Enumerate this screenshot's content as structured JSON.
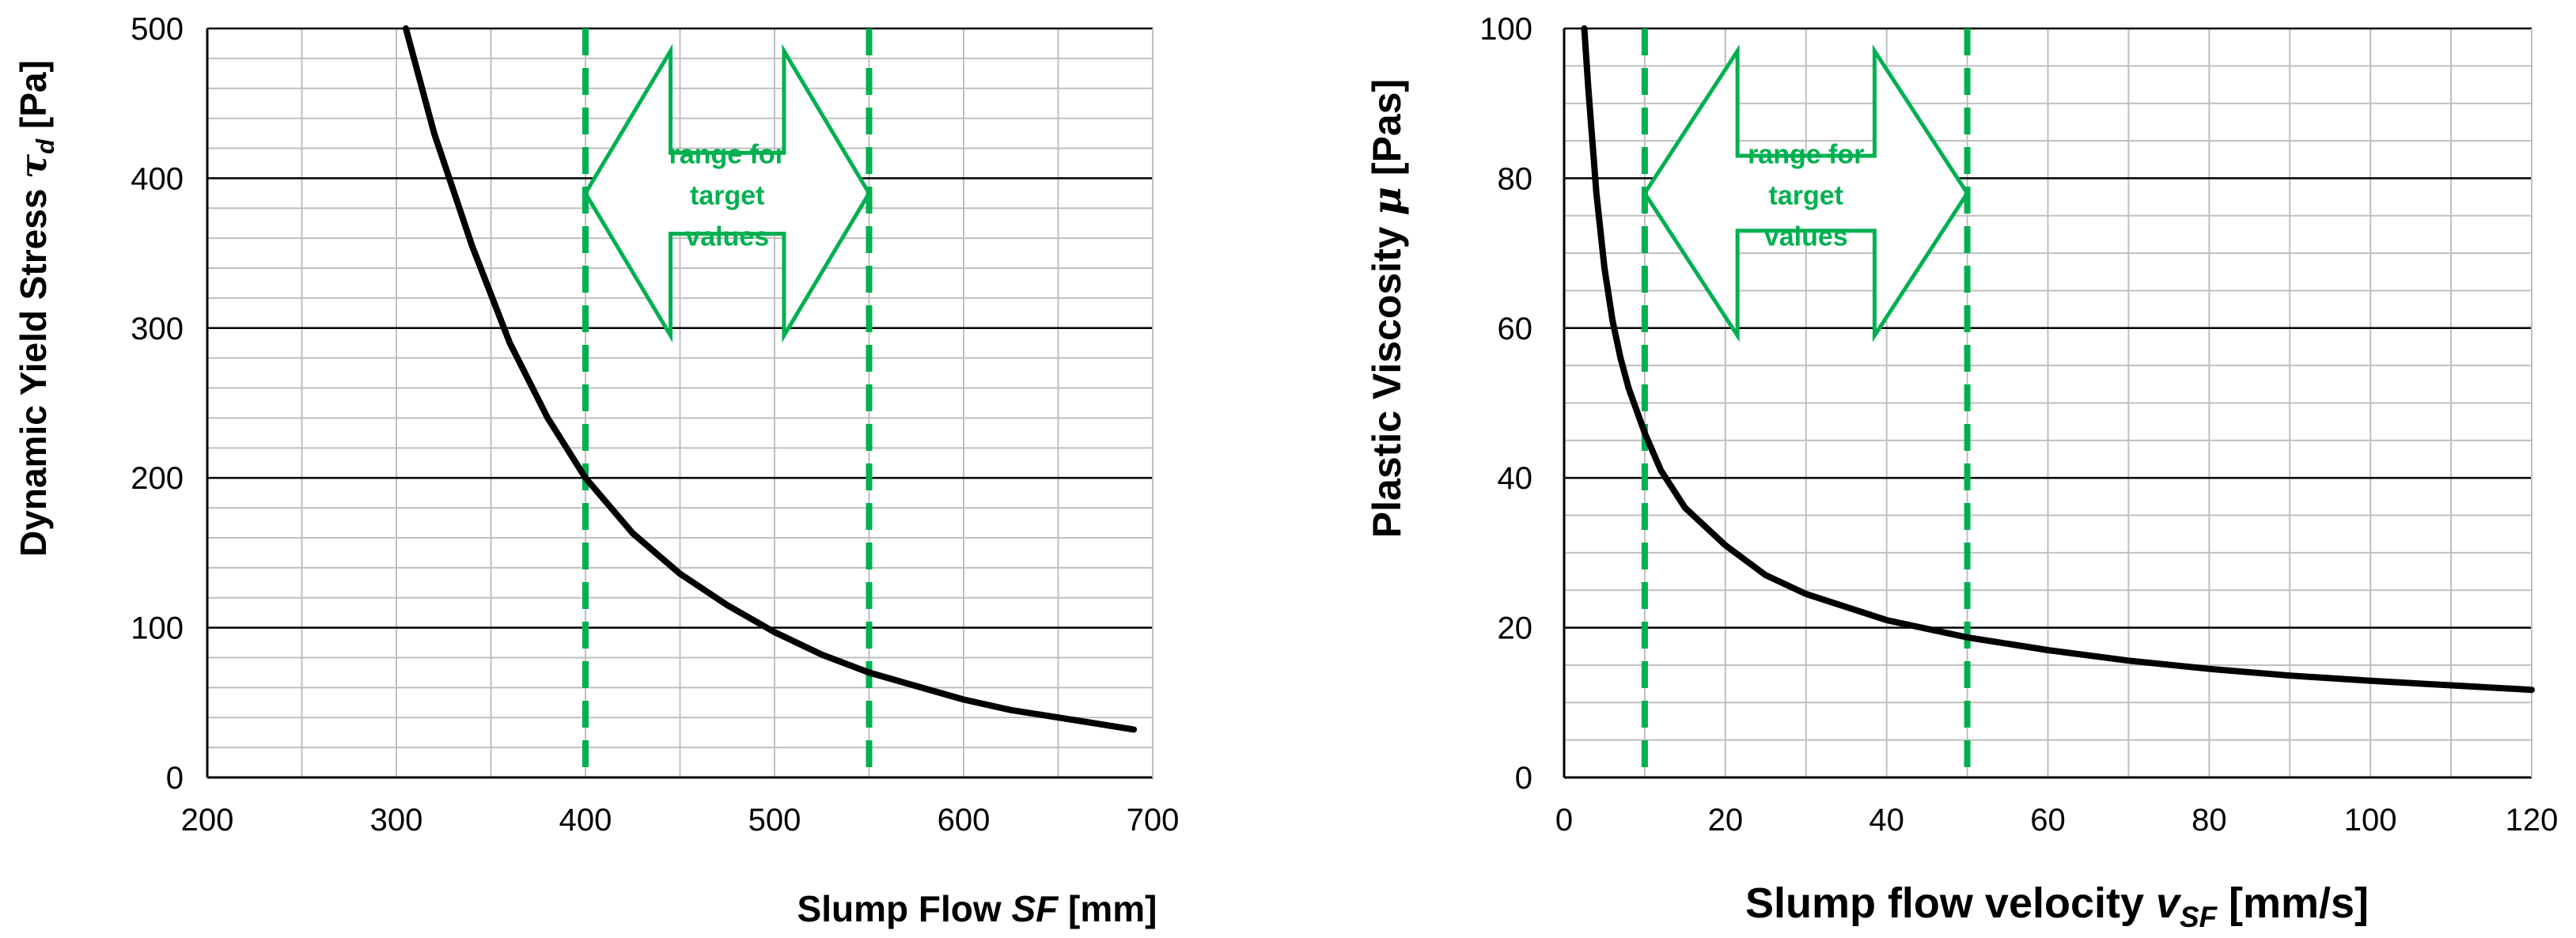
{
  "chart_data": [
    {
      "type": "line",
      "id": "left",
      "xlim": [
        200,
        700
      ],
      "ylim": [
        0,
        500
      ],
      "x_major_ticks": [
        200,
        300,
        400,
        500,
        600,
        700
      ],
      "x_minor_step": 50,
      "y_major_ticks": [
        0,
        100,
        200,
        300,
        400,
        500
      ],
      "y_minor_step": 20,
      "xlabel_prefix": "Slump Flow ",
      "xlabel_symbol": "SF",
      "xlabel_suffix": " [mm]",
      "ylabel_prefix": "Dynamic Yield Stress ",
      "ylabel_symbol": "τ",
      "ylabel_subscript": "d",
      "ylabel_suffix": " [Pa]",
      "series": [
        {
          "name": "Dynamic yield stress",
          "color": "#000000",
          "x": [
            305,
            320,
            340,
            360,
            380,
            400,
            425,
            450,
            475,
            500,
            525,
            550,
            575,
            600,
            625,
            650,
            675,
            690
          ],
          "y": [
            500,
            430,
            355,
            290,
            240,
            200,
            163,
            136,
            115,
            97,
            82,
            70,
            61,
            52,
            45,
            40,
            35,
            32
          ]
        }
      ],
      "target_lines": [
        400,
        550
      ],
      "target_color": "#00b050",
      "arrow": {
        "x_range": [
          400,
          550
        ],
        "y_center": 390,
        "y_half_height": 95,
        "stem_half_height": 27,
        "head_length": 45,
        "lines": [
          "range for",
          "target",
          "values"
        ]
      }
    },
    {
      "type": "line",
      "id": "right",
      "xlim": [
        0,
        120
      ],
      "ylim": [
        0,
        100
      ],
      "x_major_ticks": [
        0,
        20,
        40,
        60,
        80,
        100,
        120
      ],
      "x_minor_step": 10,
      "y_major_ticks": [
        0,
        20,
        40,
        60,
        80,
        100
      ],
      "y_minor_step": 5,
      "xlabel_prefix": "Slump flow velocity ",
      "xlabel_symbol": "v",
      "xlabel_subscript": "SF",
      "xlabel_suffix": " [mm/s]",
      "ylabel_prefix": "Plastic Viscosity ",
      "ylabel_symbol": "μ",
      "ylabel_suffix": " [Pas]",
      "series": [
        {
          "name": "Plastic viscosity",
          "color": "#000000",
          "x": [
            2.5,
            3,
            4,
            5,
            6,
            7,
            8,
            10,
            12,
            15,
            20,
            25,
            30,
            40,
            50,
            60,
            70,
            80,
            90,
            100,
            110,
            120
          ],
          "y": [
            100,
            92,
            78,
            68,
            61,
            56,
            52,
            46,
            41,
            36,
            31,
            27,
            24.5,
            21,
            18.7,
            17,
            15.6,
            14.5,
            13.6,
            12.9,
            12.3,
            11.7
          ]
        }
      ],
      "target_lines": [
        10,
        50
      ],
      "target_color": "#00b050",
      "arrow": {
        "x_range": [
          10,
          50
        ],
        "y_center": 78,
        "y_half_height": 19,
        "stem_half_height": 5,
        "head_length": 11.5,
        "lines": [
          "range for",
          "target",
          "values"
        ]
      }
    }
  ]
}
